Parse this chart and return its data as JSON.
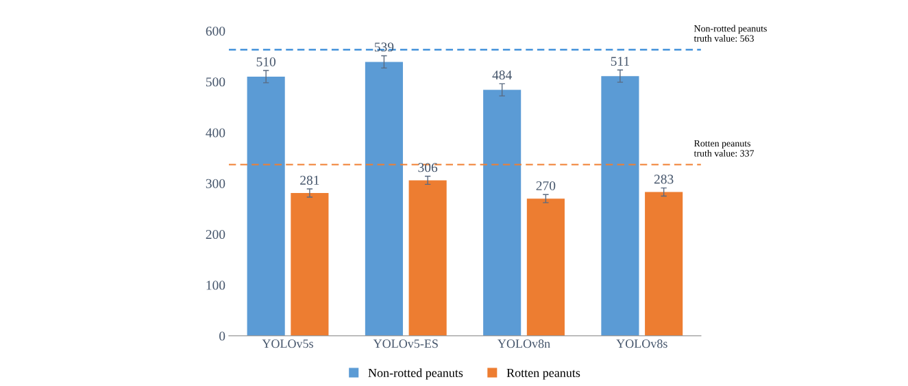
{
  "chart_data": {
    "type": "bar",
    "categories": [
      "YOLOv5s",
      "YOLOv5-ES",
      "YOLOv8n",
      "YOLOv8s"
    ],
    "series": [
      {
        "name": "Non-rotted peanuts",
        "color": "#5b9bd5",
        "values": [
          510,
          539,
          484,
          511
        ],
        "errors": [
          12,
          12,
          12,
          12
        ]
      },
      {
        "name": "Rotten peanuts",
        "color": "#ed7d31",
        "values": [
          281,
          306,
          270,
          283
        ],
        "errors": [
          8,
          8,
          8,
          8
        ]
      }
    ],
    "ylim": [
      0,
      600
    ],
    "yticks": [
      0,
      100,
      200,
      300,
      400,
      500,
      600
    ],
    "data_labels": true,
    "grid": false,
    "legend": "bottom",
    "ref_lines": [
      {
        "axis": "y",
        "value": 563,
        "label": "Non-rotted peanuts\ntruth value: 563",
        "color": "#2e86d6",
        "line_style": "dashed"
      },
      {
        "axis": "y",
        "value": 337,
        "label": "Rotten peanuts\ntruth value: 337",
        "color": "#f07f30",
        "line_style": "dashed"
      }
    ]
  }
}
